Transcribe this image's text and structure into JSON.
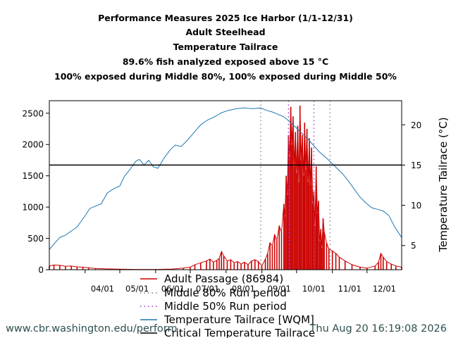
{
  "chart_data": {
    "type": "line",
    "title_lines": [
      "Performance Measures 2025 Ice Harbor (1/1-12/31)",
      "Adult Steelhead",
      "Temperature Tailrace",
      "89.6% fish analyzed exposed above 15 °C",
      "100% exposed during Middle 80%, 100% exposed during Middle 50%"
    ],
    "xlabel": "",
    "ylabel_left": "",
    "ylabel_right": "Temperature Tailrace (°C)",
    "x_range": [
      "2025-03-01",
      "2025-12-31"
    ],
    "x_tick_labels": [
      "04/01",
      "05/01",
      "06/01",
      "07/01",
      "08/01",
      "09/01",
      "10/01",
      "11/01",
      "12/01"
    ],
    "x_tick_dates": [
      "2025-04-01",
      "2025-05-01",
      "2025-06-01",
      "2025-07-01",
      "2025-08-01",
      "2025-09-01",
      "2025-10-01",
      "2025-11-01",
      "2025-12-01"
    ],
    "ylim_left": [
      0,
      2700
    ],
    "yticks_left": [
      0,
      500,
      1000,
      1500,
      2000,
      2500
    ],
    "ylim_right": [
      2,
      23
    ],
    "yticks_right": [
      5,
      10,
      15,
      20
    ],
    "grid": false,
    "legend_position": "below plot",
    "series": [
      {
        "name": "Adult Passage (86984)",
        "axis": "left",
        "color": "#cc0000",
        "style": "spike-bars",
        "points": [
          [
            "2025-03-01",
            60
          ],
          [
            "2025-03-05",
            75
          ],
          [
            "2025-03-10",
            70
          ],
          [
            "2025-03-15",
            55
          ],
          [
            "2025-03-20",
            60
          ],
          [
            "2025-03-25",
            45
          ],
          [
            "2025-03-30",
            40
          ],
          [
            "2025-04-04",
            30
          ],
          [
            "2025-04-10",
            20
          ],
          [
            "2025-04-20",
            12
          ],
          [
            "2025-05-01",
            8
          ],
          [
            "2025-05-15",
            5
          ],
          [
            "2025-06-01",
            5
          ],
          [
            "2025-06-15",
            10
          ],
          [
            "2025-06-25",
            25
          ],
          [
            "2025-07-01",
            40
          ],
          [
            "2025-07-05",
            80
          ],
          [
            "2025-07-10",
            110
          ],
          [
            "2025-07-15",
            140
          ],
          [
            "2025-07-18",
            170
          ],
          [
            "2025-07-21",
            120
          ],
          [
            "2025-07-24",
            150
          ],
          [
            "2025-07-26",
            180
          ],
          [
            "2025-07-28",
            290
          ],
          [
            "2025-07-30",
            220
          ],
          [
            "2025-08-02",
            140
          ],
          [
            "2025-08-05",
            160
          ],
          [
            "2025-08-08",
            110
          ],
          [
            "2025-08-11",
            130
          ],
          [
            "2025-08-14",
            90
          ],
          [
            "2025-08-17",
            120
          ],
          [
            "2025-08-20",
            80
          ],
          [
            "2025-08-23",
            140
          ],
          [
            "2025-08-26",
            160
          ],
          [
            "2025-08-29",
            130
          ],
          [
            "2025-09-01",
            60
          ],
          [
            "2025-09-04",
            170
          ],
          [
            "2025-09-06",
            260
          ],
          [
            "2025-09-08",
            430
          ],
          [
            "2025-09-10",
            380
          ],
          [
            "2025-09-12",
            560
          ],
          [
            "2025-09-14",
            470
          ],
          [
            "2025-09-16",
            700
          ],
          [
            "2025-09-18",
            600
          ],
          [
            "2025-09-20",
            1050
          ],
          [
            "2025-09-21",
            850
          ],
          [
            "2025-09-22",
            1500
          ],
          [
            "2025-09-23",
            1200
          ],
          [
            "2025-09-24",
            2150
          ],
          [
            "2025-09-25",
            1800
          ],
          [
            "2025-09-26",
            2600
          ],
          [
            "2025-09-27",
            2000
          ],
          [
            "2025-09-28",
            2450
          ],
          [
            "2025-09-29",
            1650
          ],
          [
            "2025-09-30",
            2200
          ],
          [
            "2025-10-01",
            1550
          ],
          [
            "2025-10-02",
            2300
          ],
          [
            "2025-10-03",
            1400
          ],
          [
            "2025-10-04",
            2620
          ],
          [
            "2025-10-05",
            1750
          ],
          [
            "2025-10-06",
            2150
          ],
          [
            "2025-10-07",
            1500
          ],
          [
            "2025-10-08",
            2350
          ],
          [
            "2025-10-09",
            1600
          ],
          [
            "2025-10-10",
            2250
          ],
          [
            "2025-10-11",
            1400
          ],
          [
            "2025-10-12",
            2100
          ],
          [
            "2025-10-13",
            1350
          ],
          [
            "2025-10-14",
            1950
          ],
          [
            "2025-10-15",
            1050
          ],
          [
            "2025-10-16",
            1250
          ],
          [
            "2025-10-17",
            700
          ],
          [
            "2025-10-18",
            1650
          ],
          [
            "2025-10-19",
            900
          ],
          [
            "2025-10-20",
            1100
          ],
          [
            "2025-10-21",
            450
          ],
          [
            "2025-10-22",
            650
          ],
          [
            "2025-10-23",
            350
          ],
          [
            "2025-10-24",
            820
          ],
          [
            "2025-10-25",
            600
          ],
          [
            "2025-10-27",
            430
          ],
          [
            "2025-10-29",
            330
          ],
          [
            "2025-11-01",
            300
          ],
          [
            "2025-11-04",
            260
          ],
          [
            "2025-11-07",
            200
          ],
          [
            "2025-11-12",
            140
          ],
          [
            "2025-11-18",
            80
          ],
          [
            "2025-11-25",
            40
          ],
          [
            "2025-12-01",
            25
          ],
          [
            "2025-12-08",
            60
          ],
          [
            "2025-12-11",
            120
          ],
          [
            "2025-12-13",
            260
          ],
          [
            "2025-12-15",
            200
          ],
          [
            "2025-12-18",
            130
          ],
          [
            "2025-12-22",
            90
          ],
          [
            "2025-12-26",
            60
          ],
          [
            "2025-12-31",
            40
          ]
        ]
      },
      {
        "name": "Middle 80% Run period",
        "color": "#7f7f7f",
        "style": "dotted-vline",
        "dates": [
          "2025-08-31",
          "2025-10-30"
        ]
      },
      {
        "name": "Middle 50% Run period",
        "color": "#9b30c8",
        "style": "dotted-vline",
        "dates": [
          "2025-09-24",
          "2025-10-16"
        ]
      },
      {
        "name": "Temperature Tailrace [WQM]",
        "axis": "right",
        "color": "#1f77b4",
        "style": "line",
        "points": [
          [
            "2025-03-01",
            4.5
          ],
          [
            "2025-03-05",
            5.2
          ],
          [
            "2025-03-10",
            6.0
          ],
          [
            "2025-03-15",
            6.3
          ],
          [
            "2025-03-20",
            6.8
          ],
          [
            "2025-03-25",
            7.3
          ],
          [
            "2025-04-01",
            8.7
          ],
          [
            "2025-04-05",
            9.6
          ],
          [
            "2025-04-10",
            9.9
          ],
          [
            "2025-04-15",
            10.2
          ],
          [
            "2025-04-20",
            11.5
          ],
          [
            "2025-04-25",
            12.0
          ],
          [
            "2025-05-01",
            12.4
          ],
          [
            "2025-05-05",
            13.6
          ],
          [
            "2025-05-10",
            14.5
          ],
          [
            "2025-05-15",
            15.5
          ],
          [
            "2025-05-18",
            15.7
          ],
          [
            "2025-05-22",
            15.0
          ],
          [
            "2025-05-26",
            15.6
          ],
          [
            "2025-05-30",
            14.8
          ],
          [
            "2025-06-03",
            14.6
          ],
          [
            "2025-06-08",
            15.8
          ],
          [
            "2025-06-13",
            16.8
          ],
          [
            "2025-06-18",
            17.5
          ],
          [
            "2025-06-23",
            17.3
          ],
          [
            "2025-06-28",
            18.0
          ],
          [
            "2025-07-04",
            19.0
          ],
          [
            "2025-07-10",
            20.0
          ],
          [
            "2025-07-16",
            20.6
          ],
          [
            "2025-07-22",
            21.0
          ],
          [
            "2025-07-28",
            21.5
          ],
          [
            "2025-08-03",
            21.8
          ],
          [
            "2025-08-10",
            22.0
          ],
          [
            "2025-08-17",
            22.1
          ],
          [
            "2025-08-24",
            22.0
          ],
          [
            "2025-08-31",
            22.1
          ],
          [
            "2025-09-05",
            21.8
          ],
          [
            "2025-09-10",
            21.6
          ],
          [
            "2025-09-15",
            21.3
          ],
          [
            "2025-09-20",
            21.0
          ],
          [
            "2025-09-25",
            20.4
          ],
          [
            "2025-10-01",
            19.6
          ],
          [
            "2025-10-06",
            18.9
          ],
          [
            "2025-10-11",
            18.2
          ],
          [
            "2025-10-16",
            17.4
          ],
          [
            "2025-10-21",
            16.6
          ],
          [
            "2025-10-26",
            16.0
          ],
          [
            "2025-10-31",
            15.3
          ],
          [
            "2025-11-05",
            14.6
          ],
          [
            "2025-11-10",
            13.9
          ],
          [
            "2025-11-15",
            13.0
          ],
          [
            "2025-11-20",
            12.0
          ],
          [
            "2025-11-25",
            11.0
          ],
          [
            "2025-11-30",
            10.3
          ],
          [
            "2025-12-05",
            9.7
          ],
          [
            "2025-12-10",
            9.5
          ],
          [
            "2025-12-15",
            9.3
          ],
          [
            "2025-12-20",
            8.7
          ],
          [
            "2025-12-25",
            7.3
          ],
          [
            "2025-12-31",
            6.0
          ]
        ]
      },
      {
        "name": "Critical Temperature Tailrace",
        "axis": "right",
        "color": "#000000",
        "style": "hline",
        "value": 15
      }
    ]
  },
  "footer": {
    "url": "www.cbr.washington.edu/perform",
    "timestamp": "Thu Aug 20 16:19:08 2026"
  }
}
